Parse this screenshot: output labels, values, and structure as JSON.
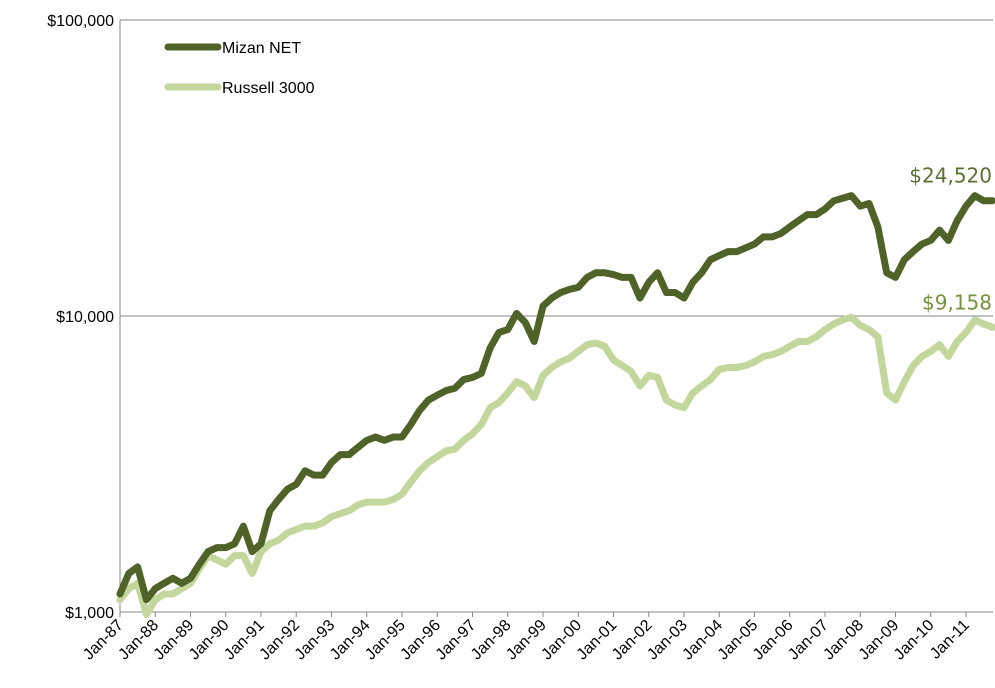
{
  "chart_data": {
    "type": "line",
    "log_scale": true,
    "grid": true,
    "legend": "top-left",
    "categories": [
      "Jan-87",
      null,
      null,
      null,
      "Jan-88",
      null,
      null,
      null,
      "Jan-89",
      null,
      null,
      null,
      "Jan-90",
      null,
      null,
      null,
      "Jan-91",
      null,
      null,
      null,
      "Jan-92",
      null,
      null,
      null,
      "Jan-93",
      null,
      null,
      null,
      "Jan-94",
      null,
      null,
      null,
      "Jan-95",
      null,
      null,
      null,
      "Jan-96",
      null,
      null,
      null,
      "Jan-97",
      null,
      null,
      null,
      "Jan-98",
      null,
      null,
      null,
      "Jan-99",
      null,
      null,
      null,
      "Jan-00",
      null,
      null,
      null,
      "Jan-01",
      null,
      null,
      null,
      "Jan-02",
      null,
      null,
      null,
      "Jan-03",
      null,
      null,
      null,
      "Jan-04",
      null,
      null,
      null,
      "Jan-05",
      null,
      null,
      null,
      "Jan-06",
      null,
      null,
      null,
      "Jan-07",
      null,
      null,
      null,
      "Jan-08",
      null,
      null,
      null,
      "Jan-09",
      null,
      null,
      null,
      "Jan-10",
      null,
      null,
      null,
      "Jan-11",
      null,
      null,
      null
    ],
    "series": [
      {
        "name": "Mizan NET",
        "color": "#4f6228",
        "label_color": "#5a7030",
        "values": [
          1150,
          1350,
          1420,
          1100,
          1200,
          1250,
          1300,
          1250,
          1300,
          1450,
          1600,
          1650,
          1650,
          1700,
          1950,
          1600,
          1700,
          2200,
          2400,
          2600,
          2700,
          3000,
          2900,
          2900,
          3200,
          3400,
          3400,
          3600,
          3800,
          3900,
          3800,
          3900,
          3900,
          4300,
          4800,
          5200,
          5400,
          5600,
          5700,
          6100,
          6200,
          6400,
          7800,
          8800,
          9000,
          10200,
          9500,
          8200,
          10800,
          11500,
          12000,
          12300,
          12500,
          13500,
          14000,
          14000,
          13800,
          13500,
          13500,
          11500,
          13000,
          14000,
          12000,
          12000,
          11500,
          13000,
          14000,
          15500,
          16000,
          16500,
          16500,
          17000,
          17500,
          18500,
          18500,
          19000,
          20000,
          21000,
          22000,
          22000,
          23000,
          24500,
          25000,
          25500,
          23500,
          24000,
          20000,
          14000,
          13500,
          15500,
          16500,
          17500,
          18000,
          19500,
          18000,
          21000,
          23500,
          25500,
          24500,
          24520
        ],
        "value_labels": [
          null,
          null,
          null,
          null,
          null,
          null,
          null,
          null,
          null,
          null,
          null,
          null,
          null,
          null,
          null,
          null,
          null,
          null,
          null,
          null,
          null,
          null,
          null,
          null,
          null,
          null,
          null,
          null,
          null,
          null,
          null,
          null,
          null,
          null,
          null,
          null,
          null,
          null,
          null,
          null,
          null,
          null,
          null,
          null,
          null,
          null,
          null,
          null,
          null,
          null,
          null,
          null,
          null,
          null,
          null,
          null,
          null,
          null,
          null,
          null,
          null,
          null,
          null,
          null,
          null,
          null,
          null,
          null,
          null,
          null,
          null,
          null,
          null,
          null,
          null,
          null,
          null,
          null,
          null,
          null,
          null,
          null,
          null,
          null,
          null,
          null,
          null,
          null,
          null,
          null,
          null,
          null,
          null,
          null,
          null,
          null,
          null,
          null,
          null,
          "$24,520"
        ]
      },
      {
        "name": "Russell 3000",
        "color": "#c3d69b",
        "label_color": "#76923c",
        "values": [
          1100,
          1200,
          1250,
          980,
          1100,
          1150,
          1150,
          1200,
          1250,
          1400,
          1550,
          1500,
          1450,
          1550,
          1550,
          1350,
          1600,
          1700,
          1750,
          1850,
          1900,
          1950,
          1950,
          2000,
          2100,
          2150,
          2200,
          2300,
          2350,
          2350,
          2350,
          2400,
          2500,
          2750,
          3000,
          3200,
          3350,
          3500,
          3550,
          3800,
          4000,
          4300,
          4900,
          5100,
          5500,
          6000,
          5800,
          5300,
          6300,
          6700,
          7000,
          7200,
          7600,
          8000,
          8100,
          7900,
          7100,
          6800,
          6500,
          5800,
          6300,
          6200,
          5200,
          5000,
          4900,
          5500,
          5800,
          6100,
          6600,
          6700,
          6700,
          6800,
          7000,
          7300,
          7400,
          7600,
          7900,
          8200,
          8200,
          8500,
          9000,
          9400,
          9700,
          9900,
          9300,
          9000,
          8500,
          5500,
          5200,
          6000,
          6800,
          7300,
          7600,
          8000,
          7300,
          8200,
          8800,
          9700,
          9400,
          9158
        ],
        "value_labels": [
          null,
          null,
          null,
          null,
          null,
          null,
          null,
          null,
          null,
          null,
          null,
          null,
          null,
          null,
          null,
          null,
          null,
          null,
          null,
          null,
          null,
          null,
          null,
          null,
          null,
          null,
          null,
          null,
          null,
          null,
          null,
          null,
          null,
          null,
          null,
          null,
          null,
          null,
          null,
          null,
          null,
          null,
          null,
          null,
          null,
          null,
          null,
          null,
          null,
          null,
          null,
          null,
          null,
          null,
          null,
          null,
          null,
          null,
          null,
          null,
          null,
          null,
          null,
          null,
          null,
          null,
          null,
          null,
          null,
          null,
          null,
          null,
          null,
          null,
          null,
          null,
          null,
          null,
          null,
          null,
          null,
          null,
          null,
          null,
          null,
          null,
          null,
          null,
          null,
          null,
          null,
          null,
          null,
          null,
          null,
          null,
          null,
          null,
          null,
          "$9,158"
        ]
      }
    ],
    "ylim": [
      1000,
      100000
    ],
    "yticks": [
      {
        "value": 1000,
        "label": "$1,000"
      },
      {
        "value": 10000,
        "label": "$10,000"
      },
      {
        "value": 100000,
        "label": "$100,000"
      }
    ]
  }
}
